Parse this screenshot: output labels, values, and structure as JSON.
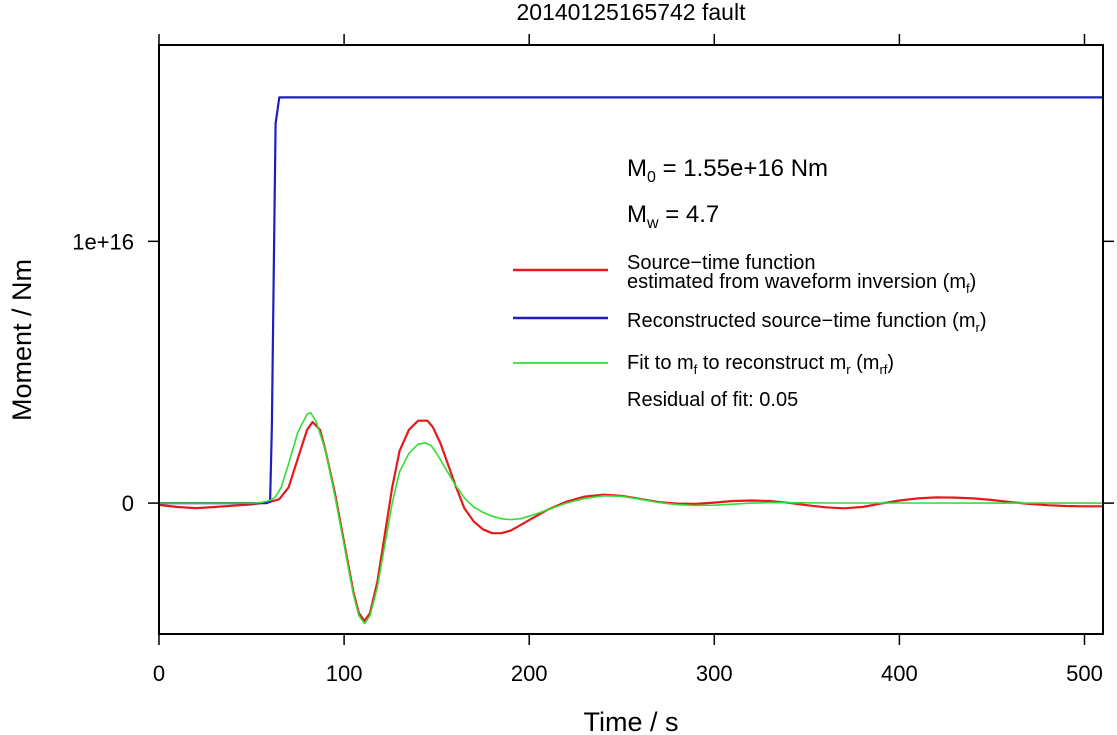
{
  "chart_data": {
    "type": "line",
    "title": "20140125165742 fault",
    "xlabel": "Time / s",
    "ylabel": "Moment / Nm",
    "xlim": [
      0,
      510
    ],
    "ylim": [
      -5000000000000000.0,
      1.75e+16
    ],
    "xticks": [
      0,
      100,
      200,
      300,
      400,
      500
    ],
    "xtick_labels": [
      "0",
      "100",
      "200",
      "300",
      "400",
      "500"
    ],
    "yticks": [
      0,
      1e+16
    ],
    "ytick_labels": [
      "0",
      "1e+16"
    ],
    "grid": false,
    "legend_position": "right",
    "annotations": {
      "m0": {
        "main": "M",
        "sub": "0",
        "rest": " = 1.55e+16 Nm"
      },
      "mw": {
        "main": "M",
        "sub": "w",
        "rest": " = 4.7"
      },
      "residual": "Residual of fit: 0.05"
    },
    "legend": [
      {
        "lines": [
          [
            {
              "t": "Source−time function"
            }
          ],
          [
            {
              "t": "estimated from waveform inversion (m"
            },
            {
              "t": "f",
              "sub": true
            },
            {
              "t": ")"
            }
          ]
        ],
        "color": "#e41a1c"
      },
      {
        "lines": [
          [
            {
              "t": "Reconstructed source−time function (m"
            },
            {
              "t": "r",
              "sub": true
            },
            {
              "t": ")"
            }
          ]
        ],
        "color": "#1f1fbf"
      },
      {
        "lines": [
          [
            {
              "t": "Fit to m"
            },
            {
              "t": "f",
              "sub": true
            },
            {
              "t": " to reconstruct m"
            },
            {
              "t": "r",
              "sub": true
            },
            {
              "t": " (m"
            },
            {
              "t": "rf",
              "sub": true
            },
            {
              "t": ")"
            }
          ]
        ],
        "color": "#33dd33"
      }
    ],
    "series": [
      {
        "color": "#e41a1c",
        "width": 2.2,
        "x": [
          0,
          10,
          20,
          30,
          40,
          50,
          55,
          60,
          65,
          70,
          75,
          80,
          83,
          87,
          90,
          95,
          100,
          105,
          108,
          111,
          114,
          118,
          122,
          126,
          130,
          135,
          140,
          145,
          148,
          152,
          156,
          160,
          165,
          170,
          175,
          180,
          185,
          190,
          195,
          200,
          210,
          220,
          230,
          240,
          250,
          260,
          270,
          280,
          290,
          300,
          310,
          320,
          330,
          340,
          350,
          360,
          370,
          380,
          390,
          400,
          410,
          420,
          430,
          440,
          450,
          460,
          470,
          480,
          490,
          500,
          510
        ],
        "values": [
          -70000000000000.0,
          -150000000000000.0,
          -190000000000000.0,
          -150000000000000.0,
          -100000000000000.0,
          -50000000000000.0,
          0,
          50000000000000.0,
          150000000000000.0,
          600000000000000.0,
          1700000000000000.0,
          2800000000000000.0,
          3100000000000000.0,
          2800000000000000.0,
          2000000000000000.0,
          400000000000000.0,
          -1500000000000000.0,
          -3400000000000000.0,
          -4200000000000000.0,
          -4500000000000000.0,
          -4200000000000000.0,
          -3000000000000000.0,
          -1200000000000000.0,
          600000000000000.0,
          2000000000000000.0,
          2800000000000000.0,
          3150000000000000.0,
          3150000000000000.0,
          2900000000000000.0,
          2300000000000000.0,
          1500000000000000.0,
          700000000000000.0,
          -200000000000000.0,
          -700000000000000.0,
          -1000000000000000.0,
          -1150000000000000.0,
          -1150000000000000.0,
          -1050000000000000.0,
          -850000000000000.0,
          -650000000000000.0,
          -250000000000000.0,
          50000000000000.0,
          250000000000000.0,
          320000000000000.0,
          280000000000000.0,
          160000000000000.0,
          40000000000000.0,
          -20000000000000.0,
          -30000000000000.0,
          20000000000000.0,
          80000000000000.0,
          100000000000000.0,
          80000000000000.0,
          10000000000000.0,
          -80000000000000.0,
          -160000000000000.0,
          -200000000000000.0,
          -150000000000000.0,
          -20000000000000.0,
          100000000000000.0,
          180000000000000.0,
          220000000000000.0,
          210000000000000.0,
          180000000000000.0,
          120000000000000.0,
          40000000000000.0,
          -30000000000000.0,
          -80000000000000.0,
          -110000000000000.0,
          -120000000000000.0,
          -120000000000000.0
        ]
      },
      {
        "color": "#1f1fbf",
        "width": 2.2,
        "x": [
          0,
          58,
          60,
          61,
          62,
          63,
          65,
          510
        ],
        "values": [
          0,
          0,
          50000000000000.0,
          3000000000000000.0,
          9000000000000000.0,
          1.45e+16,
          1.55e+16,
          1.55e+16
        ]
      },
      {
        "color": "#33dd33",
        "width": 1.6,
        "x": [
          0,
          50,
          55,
          60,
          63,
          66,
          70,
          75,
          80,
          82,
          85,
          90,
          95,
          100,
          105,
          108,
          111,
          114,
          118,
          122,
          126,
          130,
          135,
          140,
          144,
          147,
          150,
          155,
          160,
          165,
          170,
          175,
          180,
          185,
          190,
          195,
          200,
          205,
          210,
          220,
          230,
          240,
          250,
          260,
          270,
          280,
          290,
          300,
          310,
          320,
          330,
          340,
          360,
          400,
          450,
          510
        ],
        "values": [
          0,
          0,
          20000000000000.0,
          100000000000000.0,
          250000000000000.0,
          600000000000000.0,
          1500000000000000.0,
          2700000000000000.0,
          3400000000000000.0,
          3450000000000000.0,
          3100000000000000.0,
          2000000000000000.0,
          300000000000000.0,
          -1600000000000000.0,
          -3500000000000000.0,
          -4300000000000000.0,
          -4600000000000000.0,
          -4300000000000000.0,
          -3200000000000000.0,
          -1600000000000000.0,
          0,
          1200000000000000.0,
          1900000000000000.0,
          2250000000000000.0,
          2300000000000000.0,
          2200000000000000.0,
          1900000000000000.0,
          1300000000000000.0,
          700000000000000.0,
          200000000000000.0,
          -150000000000000.0,
          -350000000000000.0,
          -500000000000000.0,
          -600000000000000.0,
          -630000000000000.0,
          -600000000000000.0,
          -500000000000000.0,
          -380000000000000.0,
          -250000000000000.0,
          0,
          180000000000000.0,
          280000000000000.0,
          260000000000000.0,
          150000000000000.0,
          20000000000000.0,
          -60000000000000.0,
          -90000000000000.0,
          -80000000000000.0,
          -40000000000000.0,
          0,
          20000000000000.0,
          15000000000000.0,
          5000000000000.0,
          5000000000000.0,
          0,
          0
        ]
      }
    ]
  }
}
